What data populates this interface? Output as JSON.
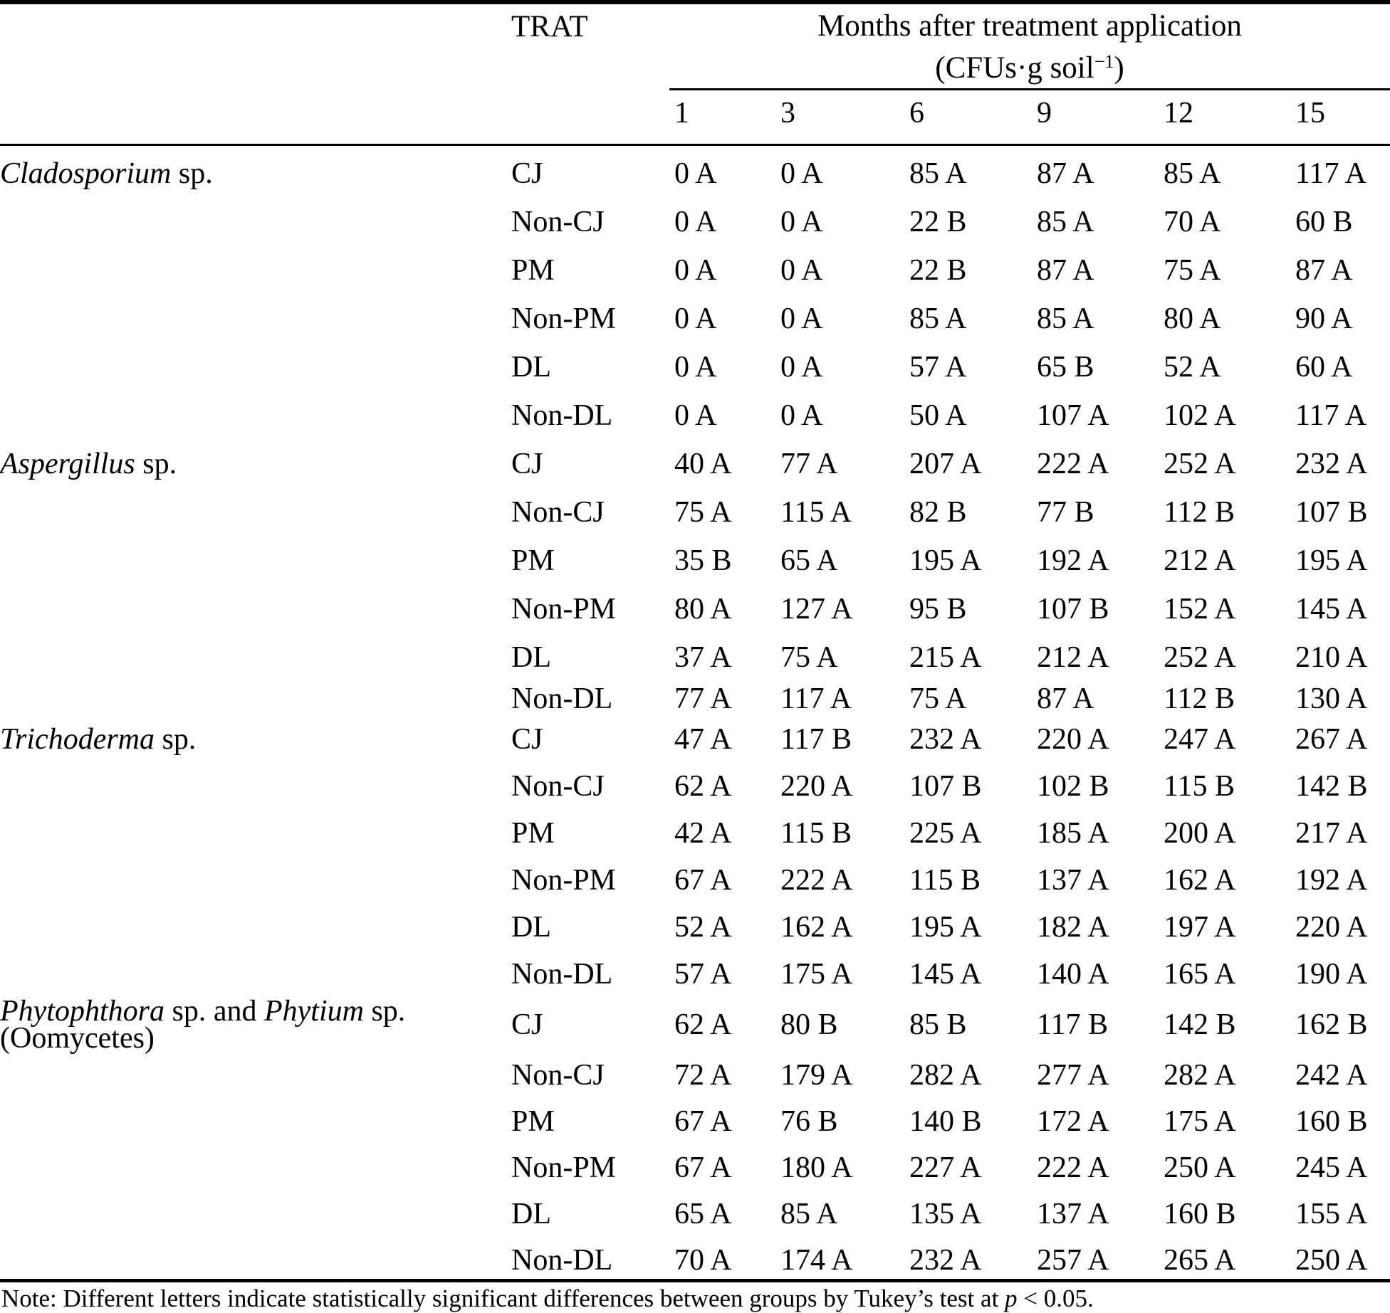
{
  "header": {
    "trat": "TRAT",
    "months_title": "Months after treatment application",
    "months_unit_pre": "(CFUs·g soil",
    "months_unit_sup": "−1",
    "months_unit_post": ")",
    "month_columns": [
      "1",
      "3",
      "6",
      "9",
      "12",
      "15"
    ]
  },
  "table": {
    "groups": [
      {
        "species": [
          {
            "text": "Cladosporium",
            "italic": true
          },
          {
            "text": " sp.",
            "italic": false
          }
        ],
        "rows": [
          {
            "trat": "CJ",
            "values": [
              "0 A",
              "0 A",
              "85 A",
              "87 A",
              "85 A",
              "117 A"
            ]
          },
          {
            "trat": "Non-CJ",
            "values": [
              "0 A",
              "0 A",
              "22 B",
              "85 A",
              "70 A",
              "60 B"
            ]
          },
          {
            "trat": "PM",
            "values": [
              "0 A",
              "0 A",
              "22 B",
              "87 A",
              "75 A",
              "87 A"
            ]
          },
          {
            "trat": "Non-PM",
            "values": [
              "0 A",
              "0 A",
              "85 A",
              "85 A",
              "80 A",
              "90 A"
            ]
          },
          {
            "trat": "DL",
            "values": [
              "0 A",
              "0 A",
              "57 A",
              "65 B",
              "52 A",
              "60 A"
            ]
          },
          {
            "trat": "Non-DL",
            "values": [
              "0 A",
              "0 A",
              "50 A",
              "107 A",
              "102 A",
              "117 A"
            ]
          }
        ]
      },
      {
        "species": [
          {
            "text": "Aspergillus",
            "italic": true
          },
          {
            "text": " sp.",
            "italic": false
          }
        ],
        "rows": [
          {
            "trat": "CJ",
            "values": [
              "40 A",
              "77 A",
              "207 A",
              "222 A",
              "252 A",
              "232 A"
            ]
          },
          {
            "trat": "Non-CJ",
            "values": [
              "75 A",
              "115 A",
              "82 B",
              "77 B",
              "112 B",
              "107 B"
            ]
          },
          {
            "trat": "PM",
            "values": [
              "35 B",
              "65 A",
              "195 A",
              "192 A",
              "212 A",
              "195 A"
            ]
          },
          {
            "trat": "Non-PM",
            "values": [
              "80 A",
              "127 A",
              "95 B",
              "107 B",
              "152 A",
              "145 A"
            ]
          },
          {
            "trat": "DL",
            "values": [
              "37 A",
              "75 A",
              "215 A",
              "212 A",
              "252 A",
              "210 A"
            ]
          },
          {
            "trat": "Non-DL",
            "values": [
              "77 A",
              "117 A",
              "75 A",
              "87 A",
              "112 B",
              "130 A"
            ]
          }
        ]
      },
      {
        "species": [
          {
            "text": "Trichoderma",
            "italic": true
          },
          {
            "text": " sp.",
            "italic": false
          }
        ],
        "rows": [
          {
            "trat": "CJ",
            "values": [
              "47 A",
              "117 B",
              "232 A",
              "220 A",
              "247 A",
              "267 A"
            ]
          },
          {
            "trat": "Non-CJ",
            "values": [
              "62 A",
              "220 A",
              "107 B",
              "102 B",
              "115 B",
              "142 B"
            ]
          },
          {
            "trat": "PM",
            "values": [
              "42 A",
              "115 B",
              "225 A",
              "185 A",
              "200 A",
              "217 A"
            ]
          },
          {
            "trat": "Non-PM",
            "values": [
              "67 A",
              "222 A",
              "115 B",
              "137 A",
              "162 A",
              "192 A"
            ]
          },
          {
            "trat": "DL",
            "values": [
              "52 A",
              "162 A",
              "195 A",
              "182 A",
              "197 A",
              "220 A"
            ]
          },
          {
            "trat": "Non-DL",
            "values": [
              "57 A",
              "175 A",
              "145 A",
              "140 A",
              "165 A",
              "190 A"
            ]
          }
        ]
      },
      {
        "species": [
          {
            "text": "Phytophthora",
            "italic": true
          },
          {
            "text": " sp. and ",
            "italic": false
          },
          {
            "text": "Phytium",
            "italic": true
          },
          {
            "text": " sp.",
            "italic": false
          }
        ],
        "species_line2": [
          {
            "text": "(Oomycetes)",
            "italic": false
          }
        ],
        "rows": [
          {
            "trat": "CJ",
            "values": [
              "62 A",
              "80 B",
              "85 B",
              "117 B",
              "142 B",
              "162 B"
            ]
          },
          {
            "trat": "Non-CJ",
            "values": [
              "72 A",
              "179 A",
              "282 A",
              "277 A",
              "282 A",
              "242 A"
            ]
          },
          {
            "trat": "PM",
            "values": [
              "67 A",
              "76 B",
              "140 B",
              "172 A",
              "175 A",
              "160 B"
            ]
          },
          {
            "trat": "Non-PM",
            "values": [
              "67 A",
              "180 A",
              "227 A",
              "222 A",
              "250 A",
              "245 A"
            ]
          },
          {
            "trat": "DL",
            "values": [
              "65 A",
              "85 A",
              "135 A",
              "137 A",
              "160 B",
              "155 A"
            ]
          },
          {
            "trat": "Non-DL",
            "values": [
              "70 A",
              "174 A",
              "232 A",
              "257 A",
              "265 A",
              "250 A"
            ]
          }
        ]
      }
    ]
  },
  "note": {
    "pre": "Note: Different letters indicate statistically significant differences between groups by Tukey’s test at ",
    "italic": "p",
    "post": " < 0.05."
  }
}
